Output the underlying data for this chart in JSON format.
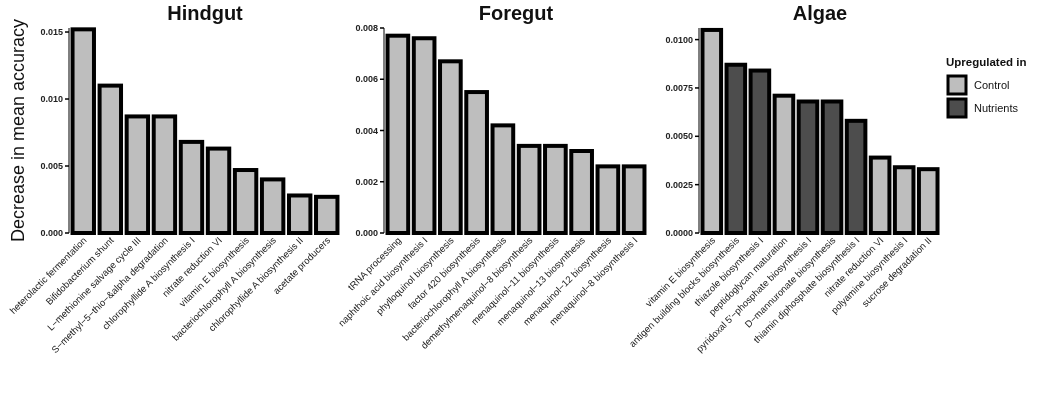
{
  "chart_data": [
    {
      "type": "bar",
      "title": "Hindgut",
      "ylabel": "Decrease in mean accuracy",
      "categories": [
        "heterolactic fermentation",
        "Bifidobacterium shunt",
        "L−methionine salvage cycle III",
        "S−methyl−5−thio−&alpha degradation",
        "chlorophyllide A biosynthesis I",
        "nitrate reduction VI",
        "vitamin E biosynthesis",
        "bacteriochlorophyll A biosynthesis",
        "chlorophyllide A biosynthesis II",
        "acetate producers"
      ],
      "series": [
        {
          "color": "#bebebe",
          "values": [
            0.0152,
            0.011,
            0.0087,
            0.0087,
            0.0068,
            0.0063,
            0.0047,
            0.004,
            0.0028,
            0.0027
          ]
        }
      ],
      "ylim": [
        0,
        0.0153
      ],
      "yticks": [
        {
          "value": 0,
          "label": "0.000"
        },
        {
          "value": 0.005,
          "label": "0.005"
        },
        {
          "value": 0.01,
          "label": "0.010"
        },
        {
          "value": 0.015,
          "label": "0.015"
        }
      ],
      "grid": false,
      "legend": false
    },
    {
      "type": "bar",
      "title": "Foregut",
      "categories": [
        "tRNA processing",
        "naphthoic acid biosynthesis I",
        "phylloquinol biosynthesis",
        "factor 420 biosynthesis",
        "bacteriochlorophyll A biosynthesis",
        "demethylmenaquinol−8 biosynthesis",
        "menaquinol−11 biosynthesis",
        "menaquinol−13 biosynthesis",
        "menaquinol−12 biosynthesis",
        "menaquinol−8 biosynthesis I"
      ],
      "series": [
        {
          "color": "#bebebe",
          "values": [
            0.0077,
            0.0076,
            0.0067,
            0.0055,
            0.0042,
            0.0034,
            0.0034,
            0.0032,
            0.0026,
            0.0026
          ]
        }
      ],
      "ylim": [
        0,
        0.008
      ],
      "yticks": [
        {
          "value": 0,
          "label": "0.000"
        },
        {
          "value": 0.002,
          "label": "0.002"
        },
        {
          "value": 0.004,
          "label": "0.004"
        },
        {
          "value": 0.006,
          "label": "0.006"
        },
        {
          "value": 0.008,
          "label": "0.008"
        }
      ],
      "grid": false,
      "legend": false
    },
    {
      "type": "bar",
      "title": "Algae",
      "legend_title": "Upregulated in",
      "stacked": true,
      "categories": [
        "vitamin E biosynthesis",
        "antigen building blocks biosynthesis",
        "thiazole biosynthesis I",
        "peptidoglycan maturation",
        "pyridoxal 5'−phosphate biosynthesis I",
        "D−mannuronate biosynthesis",
        "thiamin diphosphate biosynthesis I",
        "nitrate reduction VI",
        "polyamine biosynthesis I",
        "sucrose degradation II"
      ],
      "series": [
        {
          "name": "Control",
          "color": "#bebebe",
          "values": [
            0.0105,
            null,
            null,
            0.0071,
            null,
            null,
            null,
            0.0039,
            0.0034,
            0.0033
          ]
        },
        {
          "name": "Nutrients",
          "color": "#4d4d4d",
          "values": [
            null,
            0.0087,
            0.0084,
            null,
            0.0068,
            0.0068,
            0.0058,
            null,
            null,
            null
          ]
        }
      ],
      "ylim": [
        0,
        0.0106
      ],
      "yticks": [
        {
          "value": 0,
          "label": "0.0000"
        },
        {
          "value": 0.0025,
          "label": "0.0025"
        },
        {
          "value": 0.005,
          "label": "0.0050"
        },
        {
          "value": 0.0075,
          "label": "0.0075"
        },
        {
          "value": 0.01,
          "label": "0.0100"
        }
      ],
      "grid": false,
      "legend": "right"
    }
  ]
}
